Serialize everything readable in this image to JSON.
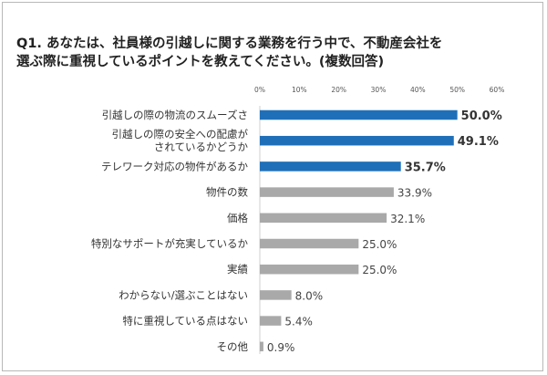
{
  "chart_data": {
    "type": "bar",
    "orientation": "horizontal",
    "title": [
      "Q1. あなたは、社員様の引越しに関する業務を行う中で、不動産会社を",
      "選ぶ際に重視しているポイントを教えてください。(複数回答)"
    ],
    "xlim": [
      0,
      60
    ],
    "ticks": [
      "0%",
      "10%",
      "20%",
      "30%",
      "40%",
      "50%",
      "60%"
    ],
    "categories": [
      [
        "引越しの際の物流のスムーズさ"
      ],
      [
        "引越しの際の安全への配慮が",
        "されているかどうか"
      ],
      [
        "テレワーク対応の物件があるか"
      ],
      [
        "物件の数"
      ],
      [
        "価格"
      ],
      [
        "特別なサポートが充実しているか"
      ],
      [
        "実績"
      ],
      [
        "わからない/選ぶことはない"
      ],
      [
        "特に重視している点はない"
      ],
      [
        "その他"
      ]
    ],
    "values": [
      50.0,
      49.1,
      35.7,
      33.9,
      32.1,
      25.0,
      25.0,
      8.0,
      5.4,
      0.9
    ],
    "value_labels": [
      "50.0%",
      "49.1%",
      "35.7%",
      "33.9%",
      "32.1%",
      "25.0%",
      "25.0%",
      "8.0%",
      "5.4%",
      "0.9%"
    ],
    "highlight": [
      true,
      true,
      true,
      false,
      false,
      false,
      false,
      false,
      false,
      false
    ],
    "colors": {
      "highlight": "#1f6fb8",
      "normal": "#a9a9a9"
    },
    "grid": false,
    "legend": "none"
  }
}
